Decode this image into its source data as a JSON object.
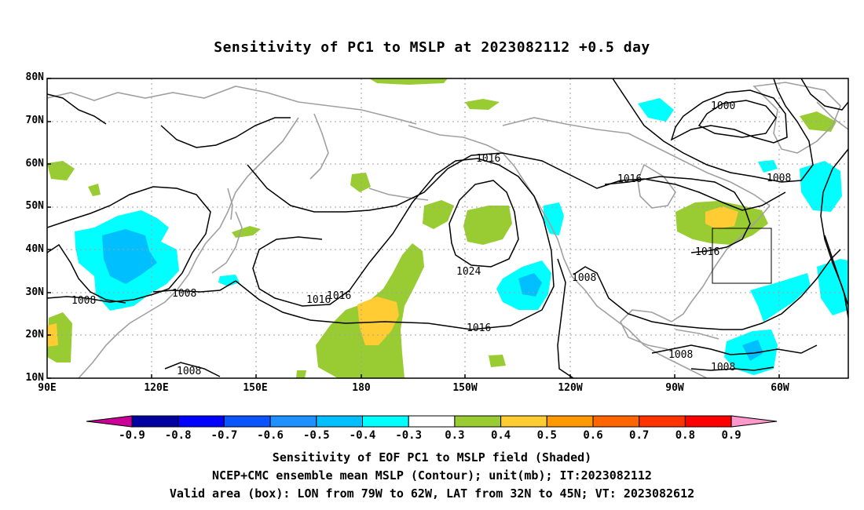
{
  "title": "Sensitivity of PC1 to MSLP at 2023082112 +0.5 day",
  "lat_labels": [
    "80N",
    "70N",
    "60N",
    "50N",
    "40N",
    "30N",
    "20N",
    "10N"
  ],
  "lon_labels": [
    "90E",
    "120E",
    "150E",
    "180",
    "150W",
    "120W",
    "90W",
    "60W"
  ],
  "contour_labels": [
    "1016",
    "1016",
    "1024",
    "1016",
    "1016",
    "1016",
    "1008",
    "1008",
    "1008",
    "1008",
    "1008",
    "1008",
    "1008",
    "1000",
    "1016",
    "1008",
    "1016"
  ],
  "colorbar": {
    "labels": [
      "-0.9",
      "-0.8",
      "-0.7",
      "-0.6",
      "-0.5",
      "-0.4",
      "-0.3",
      "0.3",
      "0.4",
      "0.5",
      "0.6",
      "0.7",
      "0.8",
      "0.9"
    ],
    "colors": [
      "#0000a0",
      "#0000ff",
      "#0a55ff",
      "#1e90ff",
      "#00bfff",
      "#00ffff",
      "#ffffff",
      "#99cc33",
      "#ffcc33",
      "#ff9900",
      "#ff6600",
      "#ff3300",
      "#ff0000"
    ],
    "left_arrow_color": "#cc0099",
    "right_arrow_color": "#ff99cc"
  },
  "captions": [
    "Sensitivity of EOF PC1 to MSLP field (Shaded)",
    "NCEP+CMC ensemble mean MSLP (Contour); unit(mb); IT:2023082112",
    "Valid area (box): LON from 79W to 62W, LAT from 32N to 45N; VT: 2023082612"
  ],
  "colors": {
    "positive_low": "#99cc33",
    "positive_mid": "#ffcc33",
    "negative_low": "#00ffff",
    "negative_mid": "#00bfff",
    "coastline": "#a0a0a0",
    "contour": "#000000"
  }
}
